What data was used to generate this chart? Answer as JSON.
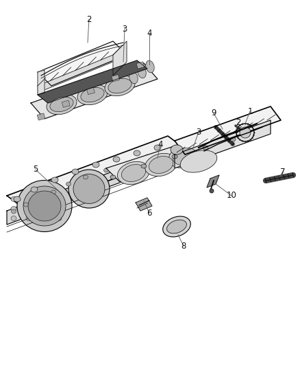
{
  "background_color": "#ffffff",
  "fig_width": 4.38,
  "fig_height": 5.33,
  "dpi": 100,
  "line_color": "#000000",
  "label_color": "#333333",
  "gray_light": "#e8e8e8",
  "gray_med": "#cccccc",
  "gray_dark": "#888888",
  "gray_fill": "#f2f2f2",
  "label_fontsize": 8.5
}
